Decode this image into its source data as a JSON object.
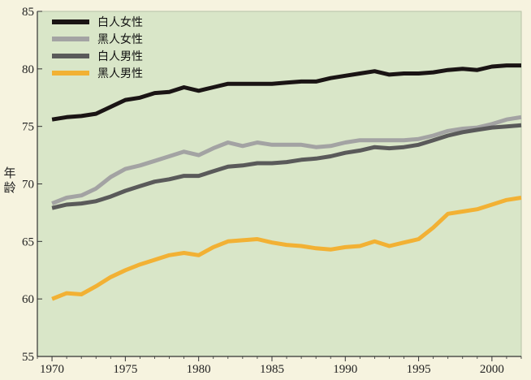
{
  "chart_data": {
    "type": "line",
    "ylabel": "年龄",
    "xlim": [
      1969,
      2002
    ],
    "ylim": [
      55,
      85
    ],
    "xticks": [
      1970,
      1975,
      1980,
      1985,
      1990,
      1995,
      2000
    ],
    "yticks": [
      55,
      60,
      65,
      70,
      75,
      80,
      85
    ],
    "grid": false,
    "legend_position": "top-left",
    "series": [
      {
        "name": "白人女性",
        "color": "#1a1414",
        "x": [
          1970,
          1971,
          1972,
          1973,
          1974,
          1975,
          1976,
          1977,
          1978,
          1979,
          1980,
          1981,
          1982,
          1983,
          1984,
          1985,
          1986,
          1987,
          1988,
          1989,
          1990,
          1991,
          1992,
          1993,
          1994,
          1995,
          1996,
          1997,
          1998,
          1999,
          2000,
          2001,
          2002
        ],
        "values": [
          75.6,
          75.8,
          75.9,
          76.1,
          76.7,
          77.3,
          77.5,
          77.9,
          78.0,
          78.4,
          78.1,
          78.4,
          78.7,
          78.7,
          78.7,
          78.7,
          78.8,
          78.9,
          78.9,
          79.2,
          79.4,
          79.6,
          79.8,
          79.5,
          79.6,
          79.6,
          79.7,
          79.9,
          80.0,
          79.9,
          80.2,
          80.3,
          80.3
        ]
      },
      {
        "name": "黑人女性",
        "color": "#a3a3a3",
        "x": [
          1970,
          1971,
          1972,
          1973,
          1974,
          1975,
          1976,
          1977,
          1978,
          1979,
          1980,
          1981,
          1982,
          1983,
          1984,
          1985,
          1986,
          1987,
          1988,
          1989,
          1990,
          1991,
          1992,
          1993,
          1994,
          1995,
          1996,
          1997,
          1998,
          1999,
          2000,
          2001,
          2002
        ],
        "values": [
          68.3,
          68.8,
          69.0,
          69.6,
          70.6,
          71.3,
          71.6,
          72.0,
          72.4,
          72.8,
          72.5,
          73.1,
          73.6,
          73.3,
          73.6,
          73.4,
          73.4,
          73.4,
          73.2,
          73.3,
          73.6,
          73.8,
          73.8,
          73.8,
          73.8,
          73.9,
          74.2,
          74.6,
          74.8,
          74.9,
          75.2,
          75.6,
          75.8
        ]
      },
      {
        "name": "白人男性",
        "color": "#5a5a5a",
        "x": [
          1970,
          1971,
          1972,
          1973,
          1974,
          1975,
          1976,
          1977,
          1978,
          1979,
          1980,
          1981,
          1982,
          1983,
          1984,
          1985,
          1986,
          1987,
          1988,
          1989,
          1990,
          1991,
          1992,
          1993,
          1994,
          1995,
          1996,
          1997,
          1998,
          1999,
          2000,
          2001,
          2002
        ],
        "values": [
          67.9,
          68.2,
          68.3,
          68.5,
          68.9,
          69.4,
          69.8,
          70.2,
          70.4,
          70.7,
          70.7,
          71.1,
          71.5,
          71.6,
          71.8,
          71.8,
          71.9,
          72.1,
          72.2,
          72.4,
          72.7,
          72.9,
          73.2,
          73.1,
          73.2,
          73.4,
          73.8,
          74.2,
          74.5,
          74.7,
          74.9,
          75.0,
          75.1
        ]
      },
      {
        "name": "黑人男性",
        "color": "#f2b134",
        "x": [
          1970,
          1971,
          1972,
          1973,
          1974,
          1975,
          1976,
          1977,
          1978,
          1979,
          1980,
          1981,
          1982,
          1983,
          1984,
          1985,
          1986,
          1987,
          1988,
          1989,
          1990,
          1991,
          1992,
          1993,
          1994,
          1995,
          1996,
          1997,
          1998,
          1999,
          2000,
          2001,
          2002
        ],
        "values": [
          60.0,
          60.5,
          60.4,
          61.1,
          61.9,
          62.5,
          63.0,
          63.4,
          63.8,
          64.0,
          63.8,
          64.5,
          65.0,
          65.1,
          65.2,
          64.9,
          64.7,
          64.6,
          64.4,
          64.3,
          64.5,
          64.6,
          65.0,
          64.6,
          64.9,
          65.2,
          66.2,
          67.4,
          67.6,
          67.8,
          68.2,
          68.6,
          68.8
        ]
      }
    ]
  }
}
